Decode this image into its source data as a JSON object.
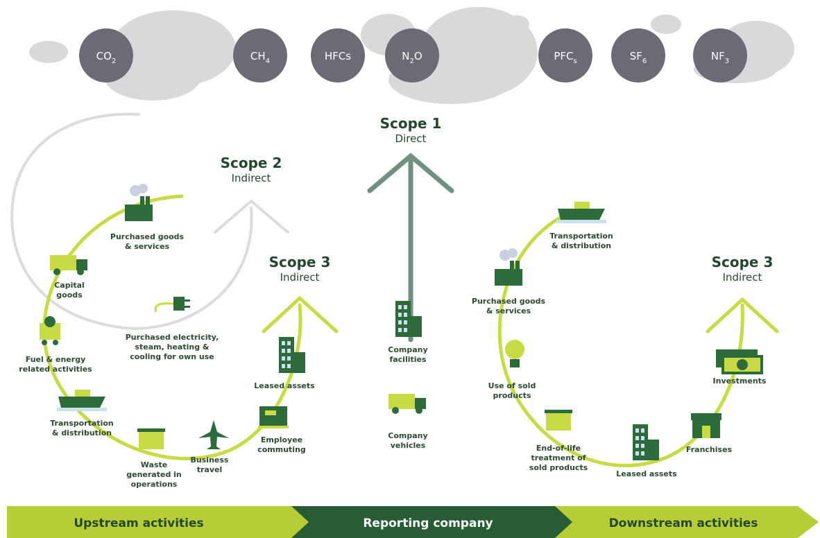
{
  "gases": [
    {
      "base": "CO",
      "sub": "2"
    },
    {
      "base": "CH",
      "sub": "4"
    },
    {
      "base": "HFCs"
    },
    {
      "base": "N",
      "sub": "2",
      "tail": "O"
    },
    {
      "base": "PFC",
      "sub": "s"
    },
    {
      "base": "SF",
      "sub": "6"
    },
    {
      "base": "NF",
      "sub": "3"
    }
  ],
  "scopes": [
    {
      "title": "Scope 1",
      "subtitle": "Direct"
    },
    {
      "title": "Scope 2",
      "subtitle": "Indirect"
    },
    {
      "title": "Scope 3",
      "subtitle": "Indirect"
    },
    {
      "title": "Scope 3",
      "subtitle": "Indirect"
    }
  ],
  "upstream": [
    {
      "label": [
        "Purchased goods",
        "& services"
      ]
    },
    {
      "label": [
        "Capital",
        "goods"
      ]
    },
    {
      "label": [
        "Fuel & energy",
        "related activities"
      ]
    },
    {
      "label": [
        "Transportation",
        "& distribution"
      ]
    },
    {
      "label": [
        "Waste",
        "generated in",
        "operations"
      ]
    },
    {
      "label": [
        "Business",
        "travel"
      ]
    },
    {
      "label": [
        "Employee",
        "commuting"
      ]
    },
    {
      "label": [
        "Leased assets"
      ]
    },
    {
      "label": [
        "Purchased electricity,",
        "steam, heating &",
        "cooling for own use"
      ]
    }
  ],
  "reporting": [
    {
      "label": [
        "Company",
        "facilities"
      ]
    },
    {
      "label": [
        "Company",
        "vehicles"
      ]
    }
  ],
  "downstream": [
    {
      "label": [
        "Transportation",
        "& distribution"
      ]
    },
    {
      "label": [
        "Purchased goods",
        "& services"
      ]
    },
    {
      "label": [
        "Use of sold",
        "products"
      ]
    },
    {
      "label": [
        "End-of-life",
        "treatment of",
        "sold products"
      ]
    },
    {
      "label": [
        "Leased assets"
      ]
    },
    {
      "label": [
        "Franchises"
      ]
    },
    {
      "label": [
        "Investments"
      ]
    }
  ],
  "footer": [
    "Upstream activities",
    "Reporting company",
    "Downstream activities"
  ]
}
